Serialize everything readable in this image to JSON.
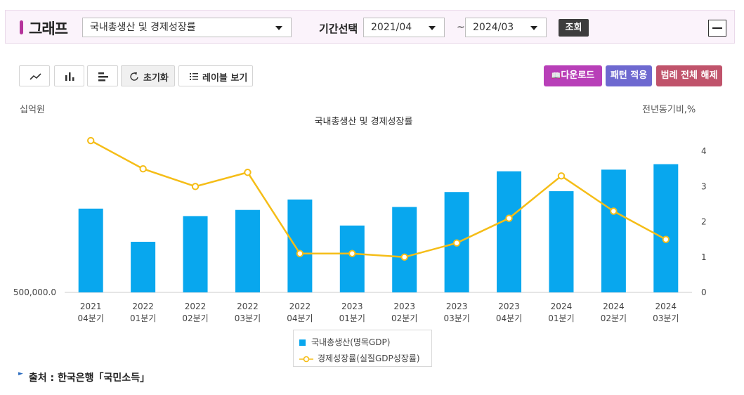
{
  "header": {
    "title": "그래프",
    "indicator_select": "국내총생산 및 경제성장률",
    "period_label": "기간선택",
    "start_period": "2021/04",
    "separator": "~",
    "end_period": "2024/03",
    "search_label": "조회"
  },
  "toolbar": {
    "line_icon": "line-chart-icon",
    "bar_icon": "bar-chart-icon",
    "hbar_icon": "horizontal-bar-icon",
    "reset_label": "초기화",
    "labels_label": "레이블 보기",
    "download_label": "다운로드",
    "pattern_label": "패턴 적용",
    "legend_off_label": "범례 전체 해제"
  },
  "colors": {
    "bar": "#08a7ee",
    "line": "#f5bd17",
    "download": "#b83fb8",
    "pattern": "#6e69d0",
    "legend_off": "#c0536b"
  },
  "chart_data": {
    "type": "bar+line",
    "title": "국내총생산 및 경제성장률",
    "ylabel_left": "십억원",
    "ylabel_right": "전년동기비,%",
    "left_baseline_label": "500,000.0",
    "categories": [
      [
        "2021",
        "04분기"
      ],
      [
        "2022",
        "01분기"
      ],
      [
        "2022",
        "02분기"
      ],
      [
        "2022",
        "03분기"
      ],
      [
        "2022",
        "04분기"
      ],
      [
        "2023",
        "01분기"
      ],
      [
        "2023",
        "02분기"
      ],
      [
        "2023",
        "03분기"
      ],
      [
        "2023",
        "04분기"
      ],
      [
        "2024",
        "01분기"
      ],
      [
        "2024",
        "02분기"
      ],
      [
        "2024",
        "03분기"
      ]
    ],
    "series": [
      {
        "name": "국내총생산(명목GDP)",
        "type": "bar",
        "axis": "left",
        "values": [
          550500,
          530500,
          546000,
          549700,
          556000,
          540300,
          551500,
          560500,
          573000,
          561000,
          574000,
          577300
        ]
      },
      {
        "name": "경제성장률(실질GDP성장률)",
        "type": "line",
        "axis": "right",
        "values": [
          4.3,
          3.5,
          3.0,
          3.4,
          1.1,
          1.1,
          1.0,
          1.4,
          2.1,
          3.3,
          2.3,
          1.5
        ]
      }
    ],
    "y_left_range": [
      500000,
      600000
    ],
    "y_right_range": [
      0,
      4.5
    ],
    "y_right_ticks": [
      0,
      1,
      2,
      3,
      4
    ],
    "legend_position": "bottom"
  },
  "source": {
    "text": "출처 : 한국은행「국민소득」"
  }
}
